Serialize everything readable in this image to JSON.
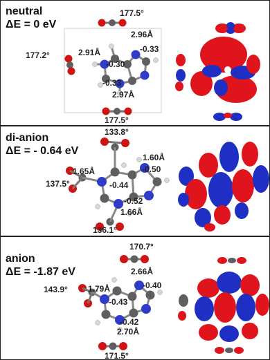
{
  "panels": [
    {
      "name": "neutral",
      "energy": "ΔE = 0 eV",
      "labels": {
        "angle_top": "177.5°",
        "dist_top": "2.96Å",
        "angle_left": "177.2°",
        "dist_left": "2.91Å",
        "charge_right": "-0.33",
        "charge_center": "-0.30",
        "charge_bottom": "-0.33",
        "dist_bottom": "2.97Å",
        "angle_bottom": "177.5°"
      }
    },
    {
      "name": "di-anion",
      "energy": "ΔE = - 0.64 eV",
      "labels": {
        "angle_top": "133.8°",
        "dist_top": "1.60Å",
        "charge_right": "-0.50",
        "angle_left": "137.5°",
        "dist_left": "1.65Å",
        "charge_center": "-0.44",
        "charge_bottom": "-0.52",
        "dist_bottom": "1.66Å",
        "angle_bottom": "136.1°"
      }
    },
    {
      "name": "anion",
      "energy": "ΔE = -1.87 eV",
      "labels": {
        "angle_top": "170.7°",
        "dist_top": "2.66Å",
        "charge_right": "-0.40",
        "angle_left": "143.9°",
        "dist_left": "1.79Å",
        "charge_center": "-0.43",
        "charge_bottom": "-0.42",
        "dist_bottom": "2.70Å",
        "angle_bottom": "171.5°"
      }
    }
  ],
  "colors": {
    "carbon": "#5f5f5f",
    "nitrogen": "#2e3cc8",
    "oxygen": "#d01414",
    "hydrogen": "#d8d8d8",
    "orbital_red": "#e0141c",
    "orbital_blue": "#1f2fc4"
  }
}
